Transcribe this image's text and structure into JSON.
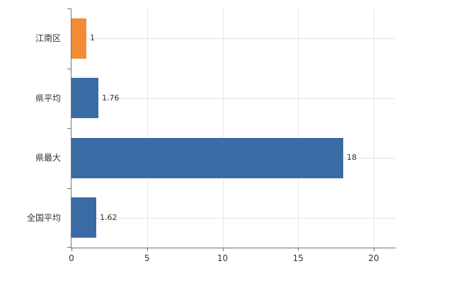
{
  "chart_data": {
    "type": "bar",
    "orientation": "horizontal",
    "title": "",
    "categories": [
      "江南区",
      "県平均",
      "県最大",
      "全国平均"
    ],
    "values": [
      1,
      1.76,
      18,
      1.62
    ],
    "value_labels": [
      "1",
      "1.76",
      "18",
      "1.62"
    ],
    "bar_colors": [
      "#f18c34",
      "#3b6ba5",
      "#3b6ba5",
      "#3b6ba5"
    ],
    "x_ticks": [
      0,
      5,
      10,
      15,
      20
    ],
    "x_tick_labels": [
      "0",
      "5",
      "10",
      "15",
      "20"
    ],
    "xlim": [
      0,
      21.45
    ],
    "grid": true,
    "legend": false,
    "axis_color": "#757575",
    "grid_color": "#e6e6e6",
    "label_color": "#333333",
    "background": "#ffffff"
  }
}
